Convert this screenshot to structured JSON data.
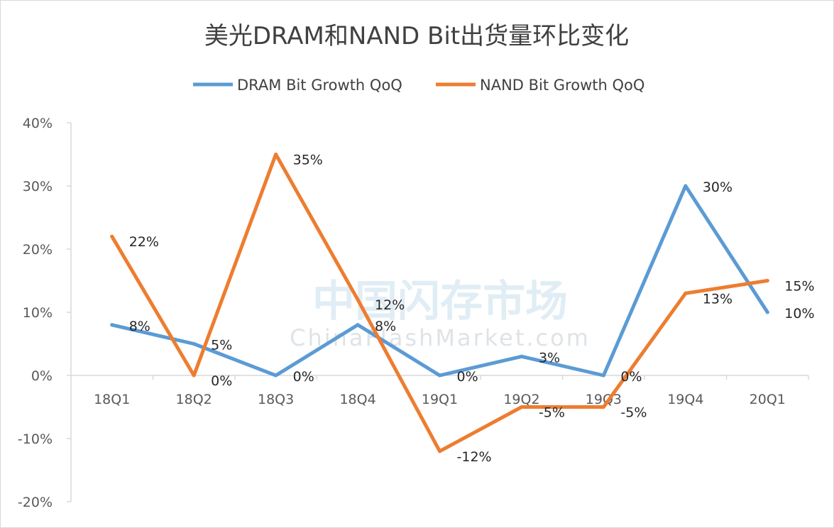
{
  "chart_data": {
    "type": "line",
    "title": "美光DRAM和NAND Bit出货量环比变化",
    "categories": [
      "18Q1",
      "18Q2",
      "18Q3",
      "18Q4",
      "19Q1",
      "19Q2",
      "19Q3",
      "19Q4",
      "20Q1"
    ],
    "series": [
      {
        "name": "DRAM Bit Growth QoQ",
        "color": "#5b9bd5",
        "values": [
          8,
          5,
          0,
          8,
          0,
          3,
          0,
          30,
          10
        ],
        "labels": [
          "8%",
          "5%",
          "0%",
          "8%",
          "0%",
          "3%",
          "0%",
          "30%",
          "10%"
        ]
      },
      {
        "name": "NAND Bit Growth QoQ",
        "color": "#ed7d31",
        "values": [
          22,
          0,
          35,
          12,
          -12,
          -5,
          -5,
          13,
          15
        ],
        "labels": [
          "22%",
          "0%",
          "35%",
          "12%",
          "-12%",
          "-5%",
          "-5%",
          "13%",
          "15%"
        ]
      }
    ],
    "yticks": [
      "40%",
      "30%",
      "20%",
      "10%",
      "0%",
      "-10%",
      "-20%"
    ],
    "ylim": [
      -20,
      40
    ],
    "grid": false,
    "legend": "top-center",
    "watermark": {
      "main": "中国闪存市场",
      "sub": "ChinaFlashMarket.com"
    }
  }
}
